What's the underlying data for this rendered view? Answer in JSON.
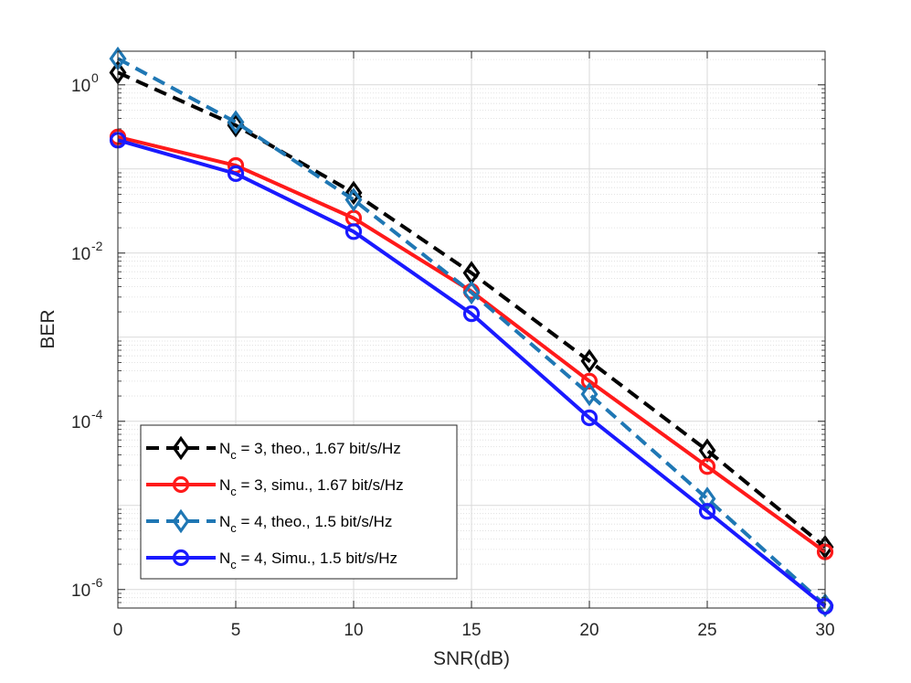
{
  "chart_data": {
    "type": "line",
    "title": "",
    "xlabel": "SNR(dB)",
    "ylabel": "BER",
    "yscale": "log",
    "xlim": [
      0,
      30
    ],
    "ylim_exponent": [
      -6.22,
      0.4
    ],
    "grid": true,
    "minor_grid": true,
    "legend_position": "lower-left",
    "x": [
      0,
      5,
      10,
      15,
      20,
      25,
      30
    ],
    "x_tick_labels": [
      "0",
      "5",
      "10",
      "15",
      "20",
      "25",
      "30"
    ],
    "y_ticks": [
      {
        "base": "10",
        "exp": "0",
        "value": 1
      },
      {
        "base": "10",
        "exp": "-2",
        "value": 0.01
      },
      {
        "base": "10",
        "exp": "-4",
        "value": 0.0001
      },
      {
        "base": "10",
        "exp": "-6",
        "value": 1e-06
      }
    ],
    "series": [
      {
        "key": "nc3-theo",
        "name": "N_c = 3, theo., 1.67 bit/s/Hz",
        "label_main": "N",
        "label_sub": "c",
        "label_rest": " = 3, theo., 1.67 bit/s/Hz",
        "color": "#000000",
        "line_style": "dashed",
        "marker": "diamond",
        "values": [
          1.4,
          0.33,
          0.052,
          0.0058,
          0.00052,
          4.5e-05,
          3.2e-06
        ]
      },
      {
        "key": "nc3-simu",
        "name": "N_c = 3, simu., 1.67 bit/s/Hz",
        "label_main": "N",
        "label_sub": "c",
        "label_rest": " = 3, simu., 1.67 bit/s/Hz",
        "color": "#ff1a1a",
        "line_style": "solid",
        "marker": "circle",
        "values": [
          0.24,
          0.11,
          0.026,
          0.0035,
          0.0003,
          2.9e-05,
          2.8e-06
        ]
      },
      {
        "key": "nc4-theo",
        "name": "N_c = 4, theo., 1.5 bit/s/Hz",
        "label_main": "N",
        "label_sub": "c",
        "label_rest": " = 4, theo., 1.5 bit/s/Hz",
        "color": "#1f77b4",
        "line_style": "dashed",
        "marker": "diamond",
        "values": [
          2.05,
          0.36,
          0.043,
          0.0034,
          0.00021,
          1.2e-05,
          6.5e-07
        ]
      },
      {
        "key": "nc4-simu",
        "name": "N_c = 4, Simu., 1.5 bit/s/Hz",
        "label_main": "N",
        "label_sub": "c",
        "label_rest": " = 4, Simu., 1.5 bit/s/Hz",
        "color": "#1a1aff",
        "line_style": "solid",
        "marker": "circle",
        "values": [
          0.22,
          0.088,
          0.018,
          0.0019,
          0.00011,
          8.5e-06,
          6.3e-07
        ]
      }
    ]
  }
}
